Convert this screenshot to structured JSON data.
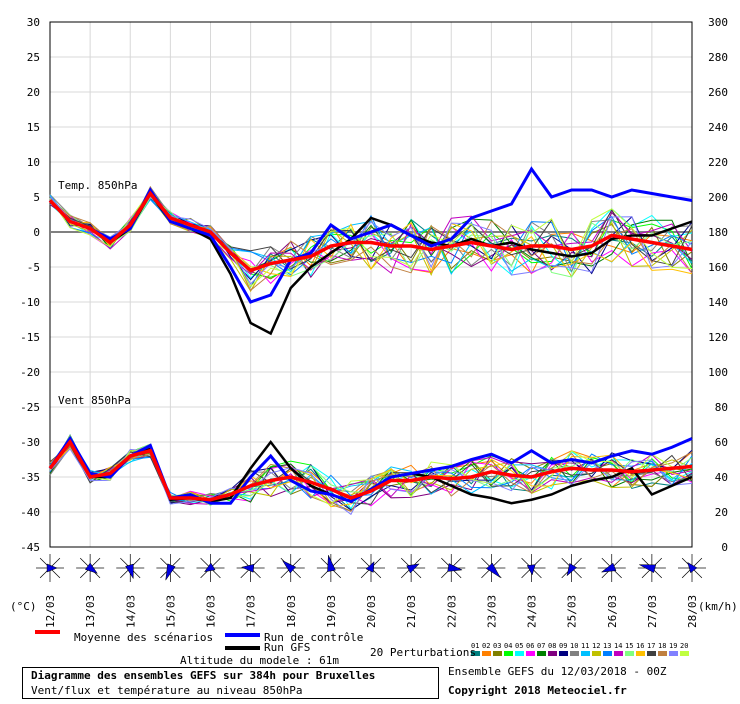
{
  "chart_data": {
    "type": "line",
    "title": "Diagramme des ensembles GEFS sur 384h pour Bruxelles",
    "subtitle": "Vent/flux et température au niveau 850hPa",
    "left_axis_unit": "(°C)",
    "right_axis_unit": "(km/h)",
    "left_ticks": [
      30,
      25,
      20,
      15,
      10,
      5,
      0,
      -5,
      -10,
      -15,
      -20,
      -25,
      -30,
      -35,
      -40,
      -45
    ],
    "right_ticks": [
      300,
      280,
      260,
      240,
      220,
      200,
      180,
      160,
      140,
      120,
      100,
      80,
      60,
      40,
      20,
      0
    ],
    "x_labels": [
      "12/03",
      "13/03",
      "14/03",
      "15/03",
      "16/03",
      "17/03",
      "18/03",
      "19/03",
      "20/03",
      "21/03",
      "22/03",
      "23/03",
      "24/03",
      "25/03",
      "26/03",
      "27/03",
      "28/03"
    ],
    "temp_label": "Temp. 850hPa",
    "wind_label": "Vent 850hPa",
    "legend": {
      "mean": "Moyenne des scénarios",
      "control": "Run de contrôle",
      "gfs": "Run GFS",
      "perturbations": "20 Perturbations",
      "altitude": "Altitude du modele : 61m",
      "pert_numbers": [
        "01",
        "02",
        "03",
        "04",
        "05",
        "06",
        "07",
        "08",
        "09",
        "10",
        "11",
        "12",
        "13",
        "14",
        "15",
        "16",
        "17",
        "18",
        "19",
        "20"
      ]
    },
    "colors": {
      "mean": "#ff0000",
      "control": "#0000ff",
      "gfs": "#000000",
      "zero_line": "#808080",
      "perturbations": [
        "#008080",
        "#ff8000",
        "#808000",
        "#00ff00",
        "#00ffff",
        "#ff00ff",
        "#008000",
        "#800080",
        "#000080",
        "#808080",
        "#00c0ff",
        "#c0c000",
        "#0080ff",
        "#c000c0",
        "#80ff80",
        "#ffc000",
        "#404040",
        "#c08040",
        "#8080ff",
        "#c0ff40"
      ]
    },
    "series_x_days": [
      0,
      0.5,
      1,
      1.5,
      2,
      2.5,
      3,
      3.5,
      4,
      4.5,
      5,
      5.5,
      6,
      6.5,
      7,
      7.5,
      8,
      8.5,
      9,
      9.5,
      10,
      10.5,
      11,
      11.5,
      12,
      12.5,
      13,
      13.5,
      14,
      14.5,
      15,
      15.5,
      16
    ],
    "temperature_series": [
      {
        "name": "Moyenne des scénarios",
        "values": [
          4.5,
          1.5,
          0.5,
          -1.5,
          1,
          5.5,
          2,
          1,
          0,
          -3,
          -5.5,
          -4.5,
          -4,
          -3.5,
          -2,
          -1.5,
          -1.5,
          -2,
          -2,
          -2.5,
          -2,
          -1.5,
          -2,
          -2.5,
          -2,
          -2,
          -2.5,
          -2,
          -0.5,
          -1,
          -1.5,
          -2,
          -2.5
        ]
      },
      {
        "name": "Run de contrôle",
        "values": [
          4.5,
          1.5,
          0.5,
          -1,
          0.5,
          6,
          1.5,
          0.5,
          -0.5,
          -5,
          -10,
          -9,
          -4,
          -3,
          1,
          -1,
          0,
          1,
          -0.5,
          -2,
          -1,
          2,
          3,
          4,
          9,
          5,
          6,
          6,
          5,
          6,
          5.5,
          5,
          4.5
        ]
      },
      {
        "name": "Run GFS",
        "values": [
          4.5,
          1.5,
          0.5,
          -1.5,
          0.5,
          5.5,
          1.5,
          0.5,
          -1,
          -6,
          -13,
          -14.5,
          -8,
          -5,
          -3,
          -1,
          2,
          1,
          -0.5,
          -1.5,
          -2,
          -1,
          -2,
          -1.5,
          -2.5,
          -3,
          -3.5,
          -3,
          -1,
          -0.5,
          -0.5,
          0.5,
          1.5
        ]
      }
    ],
    "wind_series": [
      {
        "name": "Moyenne des scénarios",
        "values": [
          45,
          60,
          40,
          42,
          52,
          55,
          28,
          28,
          27,
          30,
          35,
          38,
          40,
          37,
          33,
          28,
          32,
          38,
          38,
          40,
          39,
          40,
          43,
          41,
          40,
          43,
          45,
          44,
          44,
          43,
          44,
          45,
          46
        ]
      },
      {
        "name": "Run de contrôle",
        "values": [
          45,
          62,
          42,
          40,
          52,
          58,
          28,
          30,
          25,
          25,
          40,
          52,
          38,
          32,
          30,
          26,
          33,
          40,
          42,
          44,
          46,
          50,
          53,
          48,
          55,
          48,
          50,
          48,
          52,
          55,
          53,
          57,
          62
        ]
      },
      {
        "name": "Run GFS",
        "values": [
          45,
          60,
          40,
          40,
          52,
          56,
          27,
          28,
          26,
          28,
          45,
          60,
          45,
          35,
          30,
          26,
          33,
          40,
          42,
          40,
          35,
          30,
          28,
          25,
          27,
          30,
          35,
          38,
          40,
          45,
          30,
          35,
          40
        ]
      }
    ],
    "wind_direction_arrows": 17
  }
}
